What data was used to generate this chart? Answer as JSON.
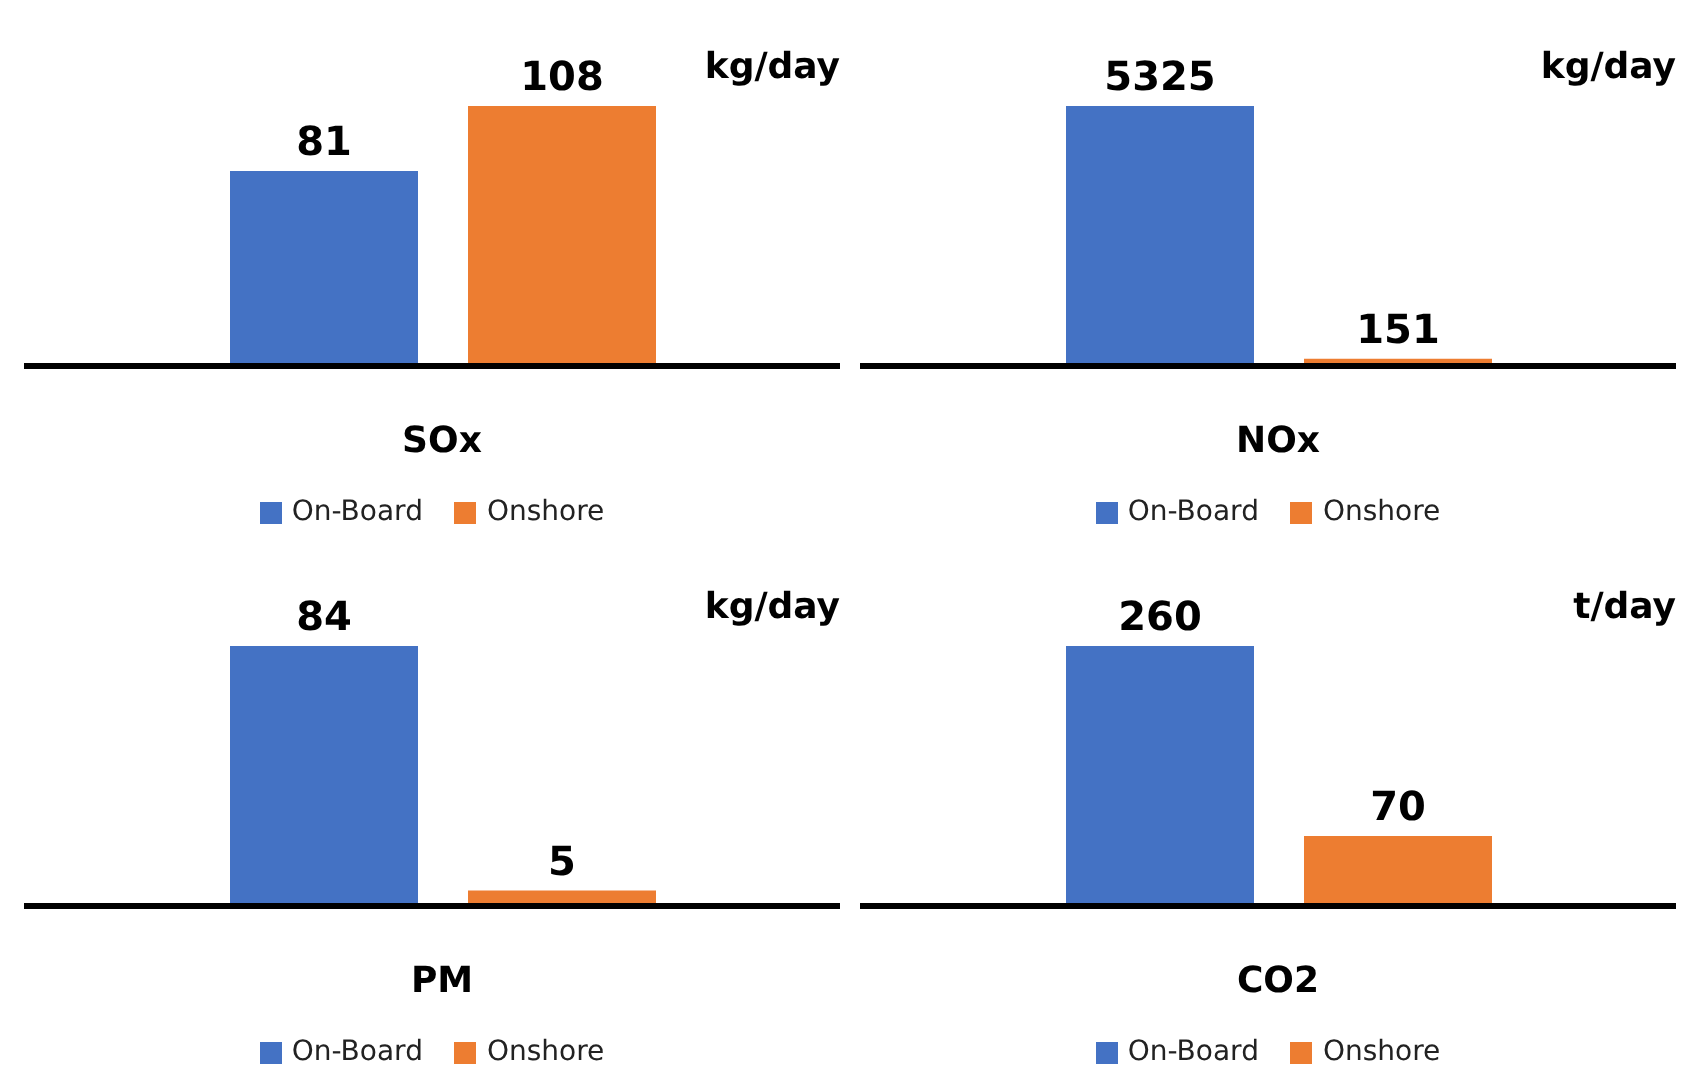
{
  "chart_data": [
    {
      "type": "bar",
      "xlabel": "SOx",
      "categories": [
        null,
        null
      ],
      "stacked": true,
      "series": [
        {
          "name": "On-Board",
          "color": "#4472c4",
          "values": [
            81,
            null
          ]
        },
        {
          "name": "Onshore",
          "color": "#ed7d31",
          "values": [
            null,
            108
          ]
        }
      ],
      "data_labels": true,
      "legend": "bottom",
      "annotations": [
        "kg/day"
      ]
    },
    {
      "type": "bar",
      "xlabel": "NOx",
      "categories": [
        null,
        null
      ],
      "stacked": true,
      "series": [
        {
          "name": "On-Board",
          "color": "#4472c4",
          "values": [
            5325,
            null
          ]
        },
        {
          "name": "Onshore",
          "color": "#ed7d31",
          "values": [
            null,
            151
          ]
        }
      ],
      "data_labels": true,
      "legend": "bottom",
      "annotations": [
        "kg/day"
      ]
    },
    {
      "type": "bar",
      "xlabel": "PM",
      "categories": [
        null,
        null
      ],
      "stacked": true,
      "series": [
        {
          "name": "On-Board",
          "color": "#4472c4",
          "values": [
            84,
            null
          ]
        },
        {
          "name": "Onshore",
          "color": "#ed7d31",
          "values": [
            null,
            5
          ]
        }
      ],
      "data_labels": true,
      "legend": "bottom",
      "annotations": [
        "kg/day"
      ]
    },
    {
      "type": "bar",
      "xlabel": "CO2",
      "categories": [
        null,
        null
      ],
      "stacked": true,
      "series": [
        {
          "name": "On-Board",
          "color": "#4472c4",
          "values": [
            260,
            null
          ]
        },
        {
          "name": "Onshore",
          "color": "#ed7d31",
          "values": [
            null,
            70
          ]
        }
      ],
      "data_labels": true,
      "legend": "bottom",
      "annotations": [
        "t/day"
      ]
    }
  ]
}
